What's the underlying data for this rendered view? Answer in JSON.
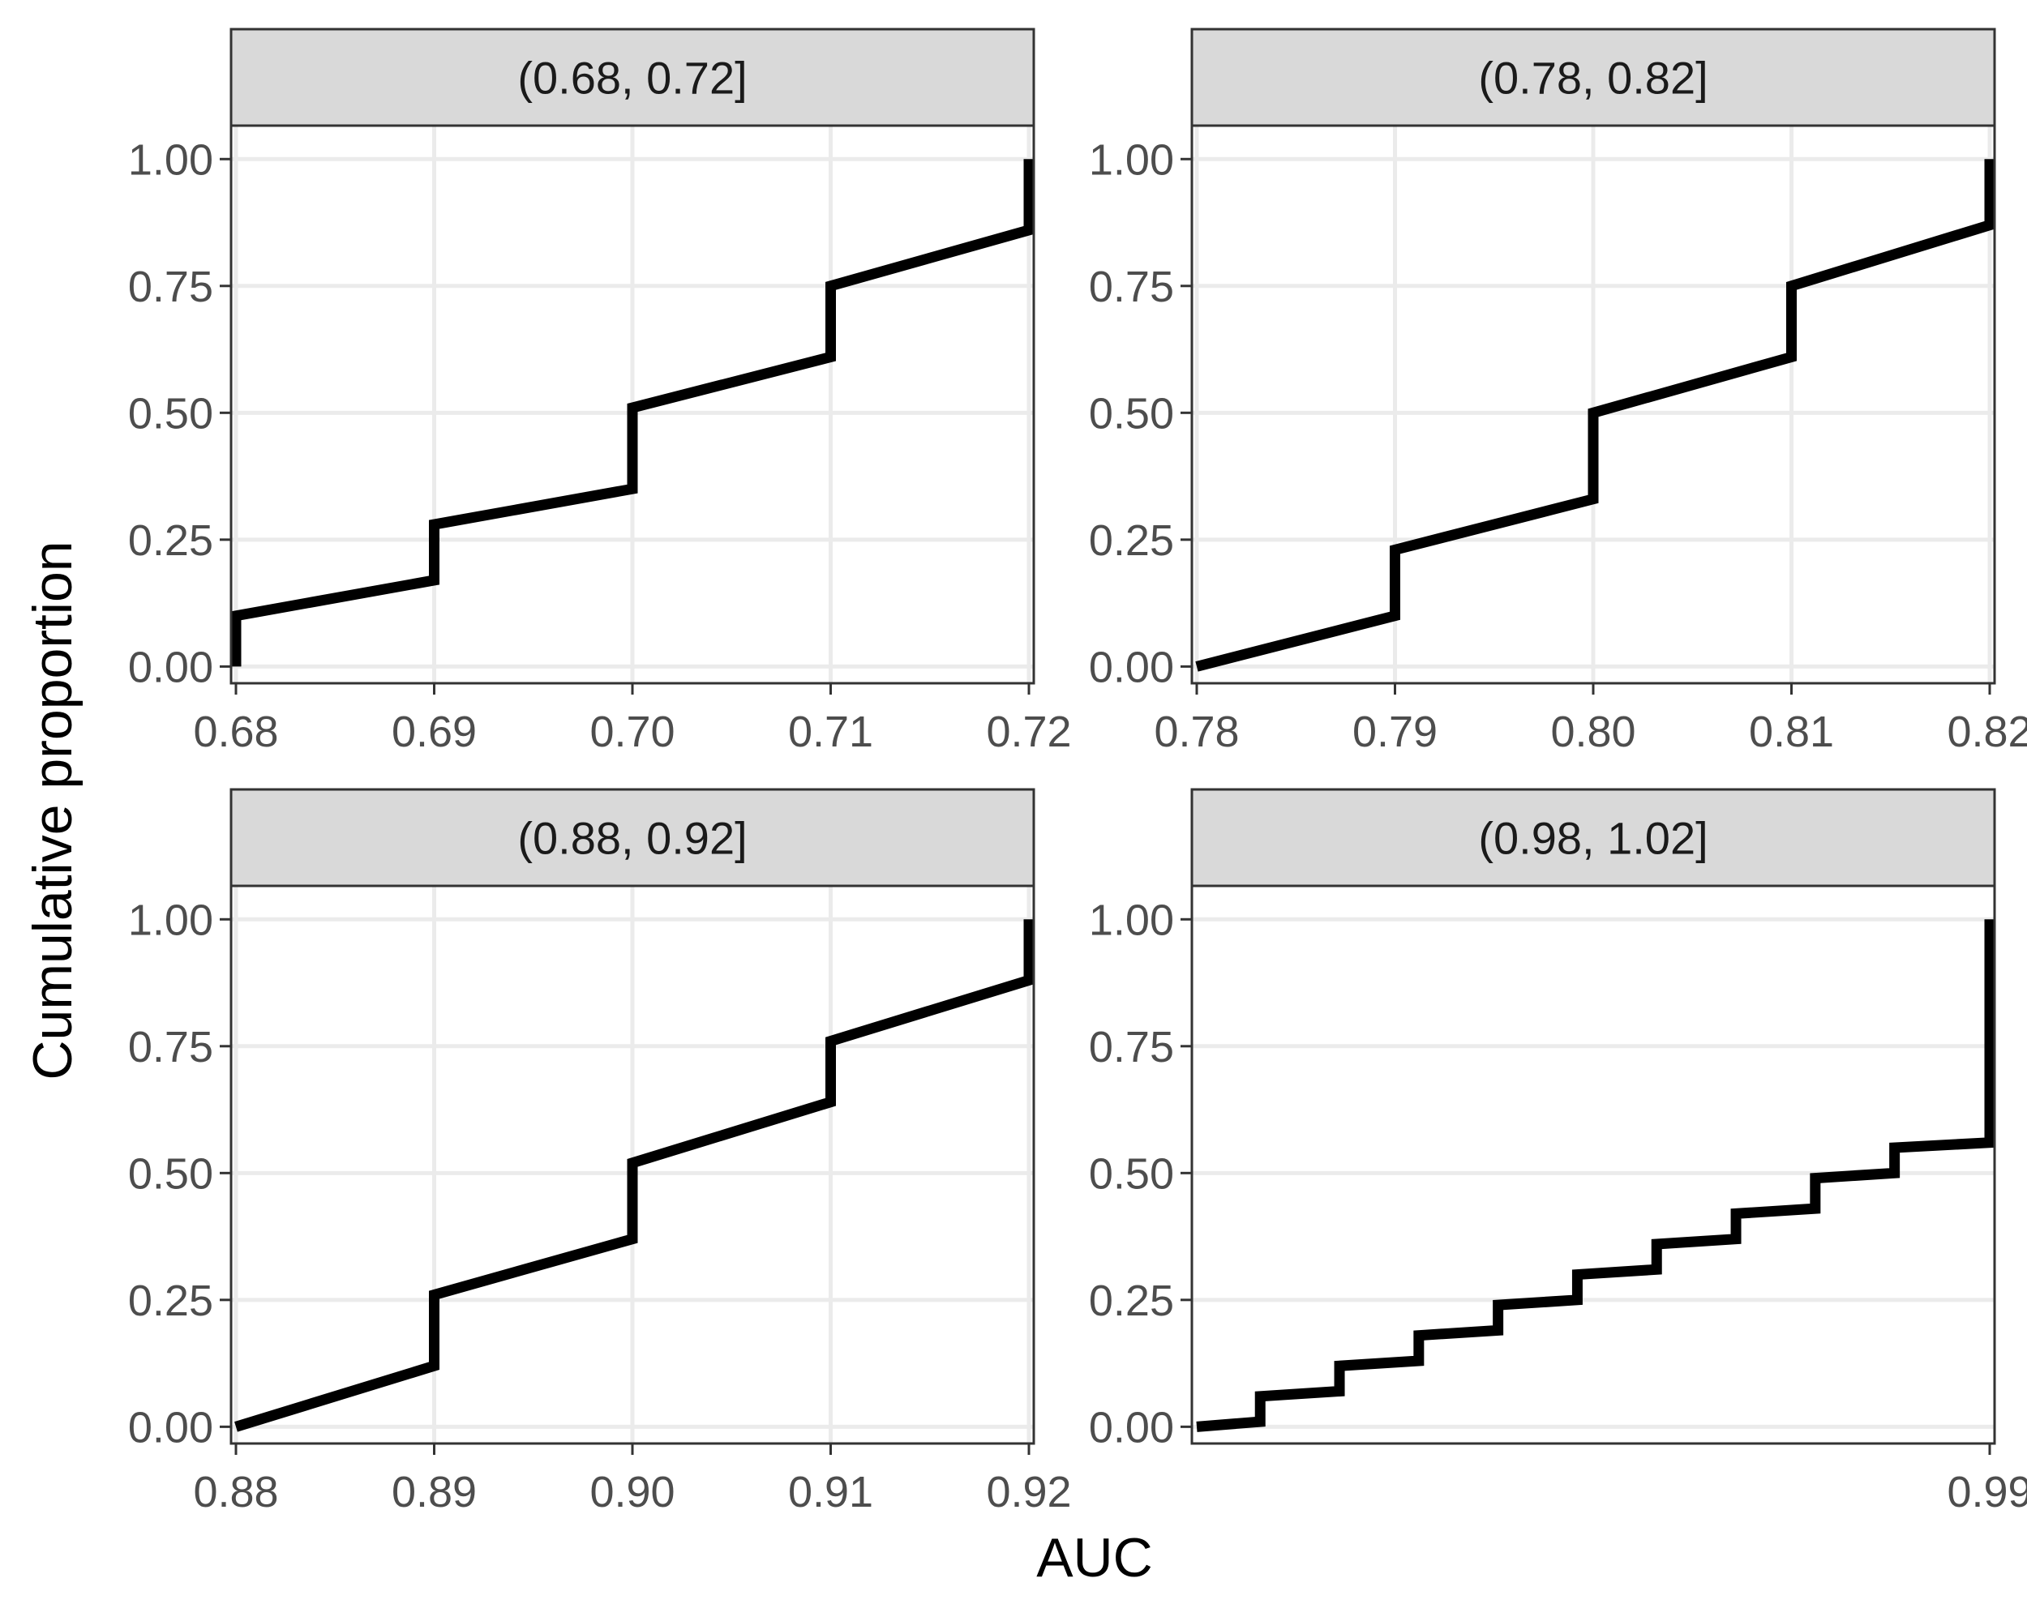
{
  "axes": {
    "xlabel": "AUC",
    "ylabel": "Cumulative proportion"
  },
  "colors": {
    "line": "#000000",
    "strip_fill": "#d9d9d9",
    "grid": "#ebebeb",
    "border": "#333333",
    "tick_text": "#4d4d4d"
  },
  "chart_data": [
    {
      "type": "line",
      "facet": "(0.68, 0.72]",
      "xlim": [
        0.68,
        0.72
      ],
      "ylim": [
        0,
        1
      ],
      "xticks": [
        "0.68",
        "0.69",
        "0.70",
        "0.71",
        "0.72"
      ],
      "xtick_values": [
        0.68,
        0.69,
        0.7,
        0.71,
        0.72
      ],
      "yticks": [
        "0.00",
        "0.25",
        "0.50",
        "0.75",
        "1.00"
      ],
      "ytick_values": [
        0,
        0.25,
        0.5,
        0.75,
        1
      ],
      "grid": true,
      "series": [
        {
          "x": [
            0.68,
            0.68,
            0.69,
            0.69,
            0.7,
            0.7,
            0.71,
            0.71,
            0.72,
            0.72
          ],
          "y": [
            0.0,
            0.1,
            0.17,
            0.28,
            0.35,
            0.51,
            0.61,
            0.75,
            0.86,
            1.0
          ]
        }
      ]
    },
    {
      "type": "line",
      "facet": "(0.78, 0.82]",
      "xlim": [
        0.78,
        0.82
      ],
      "ylim": [
        0,
        1
      ],
      "xticks": [
        "0.78",
        "0.79",
        "0.80",
        "0.81",
        "0.82"
      ],
      "xtick_values": [
        0.78,
        0.79,
        0.8,
        0.81,
        0.82
      ],
      "yticks": [
        "0.00",
        "0.25",
        "0.50",
        "0.75",
        "1.00"
      ],
      "ytick_values": [
        0,
        0.25,
        0.5,
        0.75,
        1
      ],
      "grid": true,
      "series": [
        {
          "x": [
            0.78,
            0.79,
            0.79,
            0.8,
            0.8,
            0.81,
            0.81,
            0.82,
            0.82
          ],
          "y": [
            0.0,
            0.1,
            0.23,
            0.33,
            0.5,
            0.61,
            0.75,
            0.87,
            1.0
          ]
        }
      ]
    },
    {
      "type": "line",
      "facet": "(0.88, 0.92]",
      "xlim": [
        0.88,
        0.92
      ],
      "ylim": [
        0,
        1
      ],
      "xticks": [
        "0.88",
        "0.89",
        "0.90",
        "0.91",
        "0.92"
      ],
      "xtick_values": [
        0.88,
        0.89,
        0.9,
        0.91,
        0.92
      ],
      "yticks": [
        "0.00",
        "0.25",
        "0.50",
        "0.75",
        "1.00"
      ],
      "ytick_values": [
        0,
        0.25,
        0.5,
        0.75,
        1
      ],
      "grid": true,
      "series": [
        {
          "x": [
            0.88,
            0.89,
            0.89,
            0.9,
            0.9,
            0.91,
            0.91,
            0.92,
            0.92
          ],
          "y": [
            0.0,
            0.12,
            0.26,
            0.37,
            0.52,
            0.64,
            0.76,
            0.88,
            1.0
          ]
        }
      ]
    },
    {
      "type": "line",
      "facet": "(0.98, 1.02]",
      "xlim": [
        0.98,
        0.99
      ],
      "ylim": [
        0,
        1
      ],
      "xticks": [
        "0.99"
      ],
      "xtick_values": [
        0.99
      ],
      "yticks": [
        "0.00",
        "0.25",
        "0.50",
        "0.75",
        "1.00"
      ],
      "ytick_values": [
        0,
        0.25,
        0.5,
        0.75,
        1
      ],
      "grid": false,
      "series": [
        {
          "step": "horizontal",
          "x": [
            0.98,
            0.9808,
            0.9818,
            0.9828,
            0.9838,
            0.9848,
            0.9858,
            0.9868,
            0.9878,
            0.9888,
            0.99
          ],
          "y": [
            0.0,
            0.06,
            0.12,
            0.18,
            0.24,
            0.3,
            0.36,
            0.42,
            0.49,
            0.55,
            1.0
          ],
          "plateau_end_y": [
            0.01,
            0.07,
            0.13,
            0.19,
            0.25,
            0.31,
            0.37,
            0.43,
            0.5,
            0.56
          ]
        }
      ]
    }
  ]
}
